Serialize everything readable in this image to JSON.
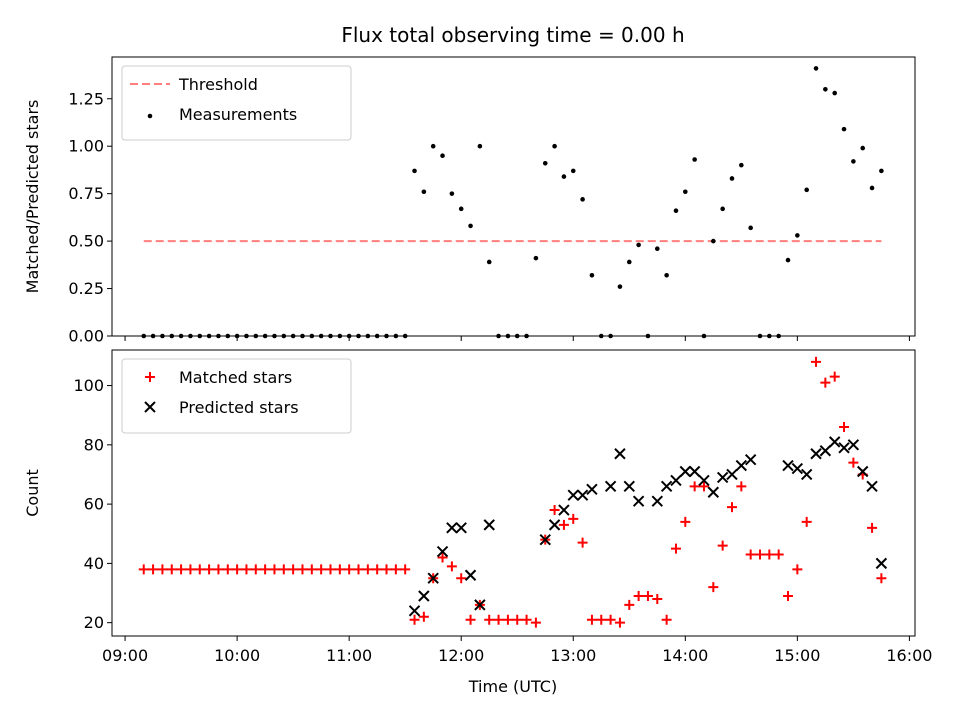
{
  "chart_data": {
    "type": "scatter",
    "title": "Flux total observing time = 0.00 h",
    "xlabel": "Time (UTC)",
    "xlim": [
      "08:53",
      "16:03"
    ],
    "xticks": [
      "09:00",
      "10:00",
      "11:00",
      "12:00",
      "13:00",
      "14:00",
      "15:00",
      "16:00"
    ],
    "panels": [
      {
        "ylabel": "Matched/Predicted stars",
        "ylim": [
          0,
          1.47
        ],
        "yticks": [
          "0.00",
          "0.25",
          "0.50",
          "0.75",
          "1.00",
          "1.25"
        ],
        "legend_position": "upper-left",
        "series": [
          {
            "name": "Threshold",
            "kind": "line",
            "style": "dashed",
            "color": "#ff7f7f",
            "x": [
              "09:10",
              "15:45"
            ],
            "y": [
              0.5,
              0.5
            ]
          },
          {
            "name": "Measurements",
            "kind": "scatter",
            "marker": "dot",
            "color": "#000000",
            "x": [
              "09:10",
              "09:15",
              "09:20",
              "09:25",
              "09:30",
              "09:35",
              "09:40",
              "09:45",
              "09:50",
              "09:55",
              "10:00",
              "10:05",
              "10:10",
              "10:15",
              "10:20",
              "10:25",
              "10:30",
              "10:35",
              "10:40",
              "10:45",
              "10:50",
              "10:55",
              "11:00",
              "11:05",
              "11:10",
              "11:15",
              "11:20",
              "11:25",
              "11:30",
              "11:35",
              "11:40",
              "11:45",
              "11:50",
              "11:55",
              "12:00",
              "12:05",
              "12:10",
              "12:15",
              "12:20",
              "12:25",
              "12:30",
              "12:35",
              "12:40",
              "12:45",
              "12:50",
              "12:55",
              "13:00",
              "13:05",
              "13:10",
              "13:15",
              "13:20",
              "13:25",
              "13:30",
              "13:35",
              "13:40",
              "13:45",
              "13:50",
              "13:55",
              "14:00",
              "14:05",
              "14:10",
              "14:15",
              "14:20",
              "14:25",
              "14:30",
              "14:35",
              "14:40",
              "14:45",
              "14:50",
              "14:55",
              "15:00",
              "15:05",
              "15:10",
              "15:15",
              "15:20",
              "15:25",
              "15:30",
              "15:35",
              "15:40",
              "15:45"
            ],
            "y": [
              0,
              0,
              0,
              0,
              0,
              0,
              0,
              0,
              0,
              0,
              0,
              0,
              0,
              0,
              0,
              0,
              0,
              0,
              0,
              0,
              0,
              0,
              0,
              0,
              0,
              0,
              0,
              0,
              0,
              0.87,
              0.76,
              1.0,
              0.95,
              0.75,
              0.67,
              0.58,
              1.0,
              0.39,
              0,
              0,
              0,
              0,
              0.41,
              0.91,
              1.0,
              0.84,
              0.87,
              0.72,
              0.32,
              0,
              0,
              0.26,
              0.39,
              0.48,
              0,
              0.46,
              0.32,
              0.66,
              0.76,
              0.93,
              0,
              0.5,
              0.67,
              0.83,
              0.9,
              0.57,
              0,
              0,
              0,
              0.4,
              0.53,
              0.77,
              1.41,
              1.3,
              1.28,
              1.09,
              0.92,
              0.99,
              0.78,
              0.87
            ]
          }
        ]
      },
      {
        "ylabel": "Count",
        "ylim": [
          15.5,
          112
        ],
        "yticks": [
          "20",
          "40",
          "60",
          "80",
          "100"
        ],
        "legend_position": "upper-left",
        "series": [
          {
            "name": "Matched stars",
            "kind": "scatter",
            "marker": "plus",
            "color": "#ff0000",
            "x": [
              "09:10",
              "09:15",
              "09:20",
              "09:25",
              "09:30",
              "09:35",
              "09:40",
              "09:45",
              "09:50",
              "09:55",
              "10:00",
              "10:05",
              "10:10",
              "10:15",
              "10:20",
              "10:25",
              "10:30",
              "10:35",
              "10:40",
              "10:45",
              "10:50",
              "10:55",
              "11:00",
              "11:05",
              "11:10",
              "11:15",
              "11:20",
              "11:25",
              "11:30",
              "11:35",
              "11:40",
              "11:45",
              "11:50",
              "11:55",
              "12:00",
              "12:05",
              "12:10",
              "12:15",
              "12:20",
              "12:25",
              "12:30",
              "12:35",
              "12:40",
              "12:45",
              "12:50",
              "12:55",
              "13:00",
              "13:05",
              "13:10",
              "13:15",
              "13:20",
              "13:25",
              "13:30",
              "13:35",
              "13:40",
              "13:45",
              "13:50",
              "13:55",
              "14:00",
              "14:05",
              "14:10",
              "14:15",
              "14:20",
              "14:25",
              "14:30",
              "14:35",
              "14:40",
              "14:45",
              "14:50",
              "14:55",
              "15:00",
              "15:05",
              "15:10",
              "15:15",
              "15:20",
              "15:25",
              "15:30",
              "15:35",
              "15:40",
              "15:45"
            ],
            "y": [
              38,
              38,
              38,
              38,
              38,
              38,
              38,
              38,
              38,
              38,
              38,
              38,
              38,
              38,
              38,
              38,
              38,
              38,
              38,
              38,
              38,
              38,
              38,
              38,
              38,
              38,
              38,
              38,
              38,
              21,
              22,
              35,
              42,
              39,
              35,
              21,
              26,
              21,
              21,
              21,
              21,
              21,
              20,
              48,
              58,
              53,
              55,
              47,
              21,
              21,
              21,
              20,
              26,
              29,
              29,
              28,
              21,
              45,
              54,
              66,
              66,
              32,
              46,
              59,
              66,
              43,
              43,
              43,
              43,
              29,
              38,
              54,
              108,
              101,
              103,
              86,
              74,
              70,
              52,
              35
            ]
          },
          {
            "name": "Predicted stars",
            "kind": "scatter",
            "marker": "x",
            "color": "#000000",
            "x": [
              "11:35",
              "11:40",
              "11:45",
              "11:50",
              "11:55",
              "12:00",
              "12:05",
              "12:10",
              "12:15",
              "12:45",
              "12:50",
              "12:55",
              "13:00",
              "13:05",
              "13:10",
              "13:20",
              "13:25",
              "13:30",
              "13:35",
              "13:45",
              "13:50",
              "13:55",
              "14:00",
              "14:05",
              "14:10",
              "14:15",
              "14:20",
              "14:25",
              "14:30",
              "14:35",
              "14:55",
              "15:00",
              "15:05",
              "15:10",
              "15:15",
              "15:20",
              "15:25",
              "15:30",
              "15:35",
              "15:40",
              "15:45"
            ],
            "y": [
              24,
              29,
              35,
              44,
              52,
              52,
              36,
              26,
              53,
              48,
              53,
              58,
              63,
              63,
              65,
              66,
              77,
              66,
              61,
              61,
              66,
              68,
              71,
              71,
              68,
              64,
              69,
              70,
              73,
              75,
              73,
              72,
              70,
              77,
              78,
              81,
              79,
              80,
              71,
              66,
              40
            ]
          }
        ]
      }
    ]
  }
}
